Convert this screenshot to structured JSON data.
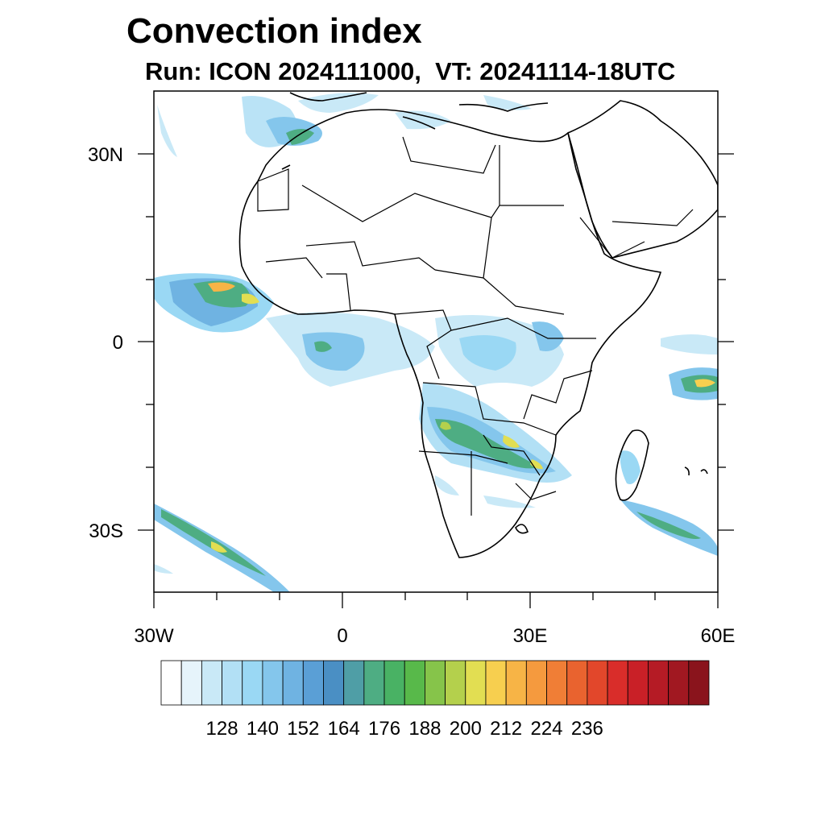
{
  "title": "Convection index",
  "subtitle": "Run: ICON 2024111000,  VT: 20241114-18UTC",
  "map": {
    "lat_labels": [
      "30N",
      "0",
      "30S"
    ],
    "lon_labels": [
      "30W",
      "0",
      "30E",
      "60E"
    ],
    "lon_range": [
      -30,
      60
    ],
    "lat_range": [
      -40,
      40
    ]
  },
  "colorbar": {
    "labels": [
      "128",
      "140",
      "152",
      "164",
      "176",
      "188",
      "200",
      "212",
      "224",
      "236"
    ],
    "colors": [
      "#ffffff",
      "#e6f4fb",
      "#c9e9f7",
      "#b2e0f5",
      "#9ad8f4",
      "#84c6ec",
      "#6fb3e2",
      "#5a9fd6",
      "#4a8fc4",
      "#4f9ea6",
      "#4ead83",
      "#49b264",
      "#58b94a",
      "#86c44a",
      "#b4d04c",
      "#e2de52",
      "#f7cf4f",
      "#f7b446",
      "#f59a3e",
      "#f07e36",
      "#e9632f",
      "#e2472b",
      "#d92d2a",
      "#c92027",
      "#b51b25",
      "#a11821",
      "#8a141c"
    ]
  }
}
